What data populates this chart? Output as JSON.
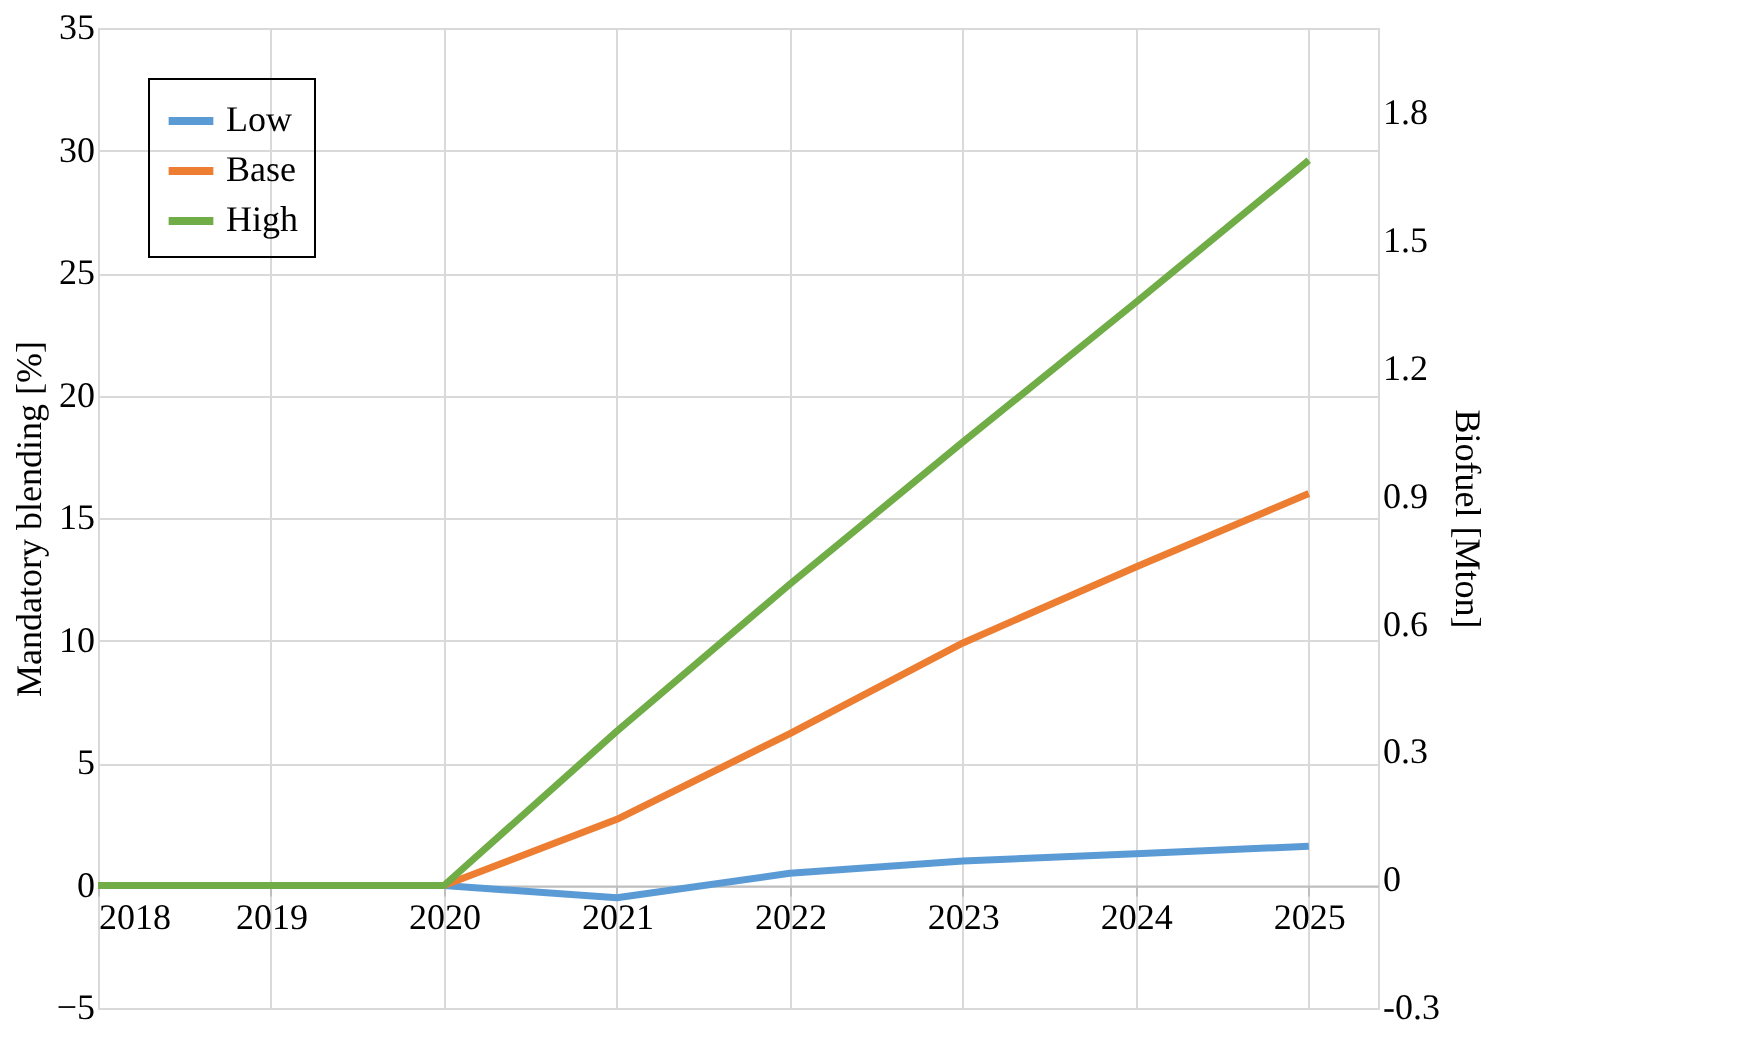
{
  "chart_data": {
    "type": "line",
    "x": [
      2018,
      2019,
      2020,
      2021,
      2022,
      2023,
      2024,
      2025
    ],
    "xlim": [
      2018,
      2025.4
    ],
    "xticks": [
      2018,
      2019,
      2020,
      2021,
      2022,
      2023,
      2024,
      2025
    ],
    "ylim": [
      -5,
      35
    ],
    "yticks": [
      -5,
      0,
      5,
      10,
      15,
      20,
      25,
      30,
      35
    ],
    "y2lim": [
      -0.3,
      2.0
    ],
    "y2ticks": [
      -0.3,
      0,
      0.3,
      0.6,
      0.9,
      1.2,
      1.5,
      1.8
    ],
    "ylabel": "Mandatory blending [%]",
    "y2label": "Biofuel [Mton]",
    "series": [
      {
        "name": "Low",
        "color": "#5b9bd5",
        "values": [
          0,
          0,
          0,
          -0.5,
          0.5,
          1.0,
          1.3,
          1.6
        ]
      },
      {
        "name": "Base",
        "color": "#ed7d31",
        "values": [
          0,
          0,
          0,
          2.7,
          6.2,
          9.9,
          13.0,
          16.0
        ]
      },
      {
        "name": "High",
        "color": "#70ad47",
        "values": [
          0,
          0,
          0,
          6.3,
          12.3,
          18.1,
          23.8,
          29.6
        ]
      }
    ],
    "grid": true,
    "legend": "top left",
    "marker": "none",
    "line_style": "solid"
  }
}
